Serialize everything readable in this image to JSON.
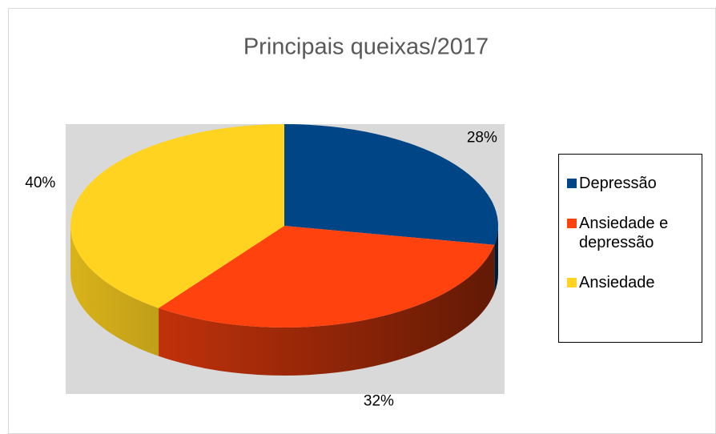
{
  "chart_data": {
    "type": "pie",
    "title": "Principais queixas/2017",
    "categories": [
      "Depressão",
      "Ansiedade e depressão",
      "Ansiedade"
    ],
    "values": [
      28,
      32,
      40
    ],
    "value_labels": [
      "28%",
      "32%",
      "40%"
    ],
    "colors": [
      "#004586",
      "#ff420e",
      "#ffd320"
    ],
    "legend": "right"
  }
}
